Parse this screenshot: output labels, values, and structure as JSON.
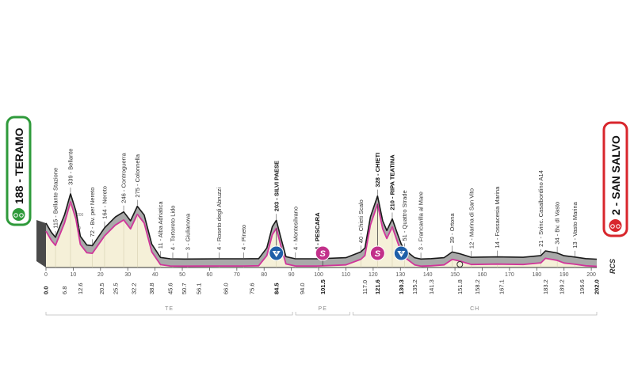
{
  "chart_data": {
    "type": "area",
    "start": {
      "name": "188 - TERAMO",
      "color": "#2e9a3a"
    },
    "finish": {
      "name": "2 - SAN SALVO",
      "color": "#d8262c"
    },
    "distance_km": 202.0,
    "ylim": [
      0,
      400
    ],
    "axis_ticks": [
      0,
      10,
      20,
      30,
      40,
      50,
      60,
      70,
      80,
      90,
      100,
      110,
      120,
      130,
      140,
      150,
      160,
      170,
      180,
      190,
      200
    ],
    "scale_label_200": "200",
    "scale_label_0": "0",
    "brand": "RCS",
    "km_markers": [
      {
        "label": "0.0",
        "km": 0.0,
        "bold": true
      },
      {
        "label": "6.8",
        "km": 6.8
      },
      {
        "label": "12.6",
        "km": 12.6
      },
      {
        "label": "20.5",
        "km": 20.5
      },
      {
        "label": "25.5",
        "km": 25.5
      },
      {
        "label": "32.2",
        "km": 32.2
      },
      {
        "label": "38.8",
        "km": 38.8
      },
      {
        "label": "45.6",
        "km": 45.6
      },
      {
        "label": "50.7",
        "km": 50.7
      },
      {
        "label": "56.1",
        "km": 56.1
      },
      {
        "label": "66.0",
        "km": 66.0
      },
      {
        "label": "75.6",
        "km": 75.6
      },
      {
        "label": "84.5",
        "km": 84.5,
        "bold": true
      },
      {
        "label": "94.0",
        "km": 94.0
      },
      {
        "label": "101.5",
        "km": 101.5,
        "bold": true
      },
      {
        "label": "117.0",
        "km": 117.0
      },
      {
        "label": "121.6",
        "km": 121.6,
        "bold": true
      },
      {
        "label": "130.3",
        "km": 130.3,
        "bold": true
      },
      {
        "label": "135.2",
        "km": 135.2
      },
      {
        "label": "141.3",
        "km": 141.3
      },
      {
        "label": "151.8",
        "km": 151.8
      },
      {
        "label": "158.2",
        "km": 158.2
      },
      {
        "label": "167.1",
        "km": 167.1
      },
      {
        "label": "183.2",
        "km": 183.2
      },
      {
        "label": "189.2",
        "km": 189.2
      },
      {
        "label": "196.6",
        "km": 196.6
      },
      {
        "label": "202.0",
        "km": 202.0,
        "bold": true
      }
    ],
    "waypoints": [
      {
        "label": "115 - Bellante Stazione",
        "km": 3.5
      },
      {
        "label": "339 - Bellante",
        "km": 9.0
      },
      {
        "label": "72 - Bv. per Nereto",
        "km": 17.0
      },
      {
        "label": "164 - Nereto",
        "km": 21.5
      },
      {
        "label": "246 - Controguerra",
        "km": 28.5
      },
      {
        "label": "275 - Colonnella",
        "km": 33.5
      },
      {
        "label": "11 - Alba Adriatica",
        "km": 42.0
      },
      {
        "label": "4 - Tortoreto Lido",
        "km": 46.5
      },
      {
        "label": "3 - Giulianova",
        "km": 52.0
      },
      {
        "label": "4 - Roseto degli Abruzzi",
        "km": 63.5
      },
      {
        "label": "4 - Pineto",
        "km": 72.5
      },
      {
        "label": "203 - SILVI PAESE",
        "km": 84.5,
        "bold": true
      },
      {
        "label": "4 - Montesilvano",
        "km": 91.5
      },
      {
        "label": "4 - PESCARA",
        "km": 99.5,
        "bold": true
      },
      {
        "label": "40 - Chieti Scalo",
        "km": 115.5
      },
      {
        "label": "328 - CHIETI",
        "km": 121.6,
        "bold": true
      },
      {
        "label": "210 - RIPA TEATINA",
        "km": 127.0,
        "bold": true
      },
      {
        "label": "51 - Quattro Strade",
        "km": 131.5
      },
      {
        "label": "3 - Francavilla al Mare",
        "km": 137.5
      },
      {
        "label": "39 - Ortona",
        "km": 149.0
      },
      {
        "label": "12 - Marina di San Vito",
        "km": 156.0
      },
      {
        "label": "14 - Fossacesia Marina",
        "km": 165.5
      },
      {
        "label": "21 - Svinc. Casalbordino A14",
        "km": 181.5
      },
      {
        "label": "34 - Bv. di Vasto",
        "km": 187.5
      },
      {
        "label": "13 - Vasto Marina",
        "km": 194.0
      }
    ],
    "markers": [
      {
        "type": "gpm",
        "label": "4",
        "km": 84.5,
        "color": "#1f5fa8"
      },
      {
        "type": "sprint",
        "label": "S",
        "km": 101.5,
        "color": "#c2308a"
      },
      {
        "type": "sprint",
        "label": "S",
        "km": 121.6,
        "color": "#c2308a"
      },
      {
        "type": "gpm",
        "label": "4",
        "km": 130.3,
        "color": "#1f5fa8"
      }
    ],
    "regions": [
      {
        "label": "TE",
        "from_km": 0,
        "to_km": 91
      },
      {
        "label": "PE",
        "from_km": 91,
        "to_km": 112
      },
      {
        "label": "CH",
        "from_km": 112,
        "to_km": 202
      }
    ],
    "profile": [
      {
        "km": 0,
        "alt": 188
      },
      {
        "km": 2,
        "alt": 140
      },
      {
        "km": 3.5,
        "alt": 115
      },
      {
        "km": 6.8,
        "alt": 230
      },
      {
        "km": 9.0,
        "alt": 339
      },
      {
        "km": 11,
        "alt": 250
      },
      {
        "km": 12.6,
        "alt": 120
      },
      {
        "km": 15,
        "alt": 75
      },
      {
        "km": 17,
        "alt": 72
      },
      {
        "km": 21.5,
        "alt": 164
      },
      {
        "km": 25.5,
        "alt": 220
      },
      {
        "km": 28.5,
        "alt": 246
      },
      {
        "km": 31,
        "alt": 200
      },
      {
        "km": 33.5,
        "alt": 275
      },
      {
        "km": 36,
        "alt": 230
      },
      {
        "km": 38.8,
        "alt": 80
      },
      {
        "km": 42,
        "alt": 11
      },
      {
        "km": 45.6,
        "alt": 4
      },
      {
        "km": 50.7,
        "alt": 3
      },
      {
        "km": 63.5,
        "alt": 4
      },
      {
        "km": 72.5,
        "alt": 4
      },
      {
        "km": 78,
        "alt": 5
      },
      {
        "km": 81,
        "alt": 60
      },
      {
        "km": 83,
        "alt": 170
      },
      {
        "km": 84.5,
        "alt": 203
      },
      {
        "km": 86,
        "alt": 120
      },
      {
        "km": 88,
        "alt": 15
      },
      {
        "km": 91.5,
        "alt": 4
      },
      {
        "km": 99.5,
        "alt": 4
      },
      {
        "km": 110,
        "alt": 10
      },
      {
        "km": 115.5,
        "alt": 40
      },
      {
        "km": 117,
        "alt": 60
      },
      {
        "km": 119,
        "alt": 220
      },
      {
        "km": 121.6,
        "alt": 328
      },
      {
        "km": 123.5,
        "alt": 200
      },
      {
        "km": 125,
        "alt": 150
      },
      {
        "km": 127,
        "alt": 210
      },
      {
        "km": 129,
        "alt": 130
      },
      {
        "km": 130.3,
        "alt": 80
      },
      {
        "km": 131.5,
        "alt": 51
      },
      {
        "km": 135.2,
        "alt": 10
      },
      {
        "km": 137.5,
        "alt": 3
      },
      {
        "km": 141.3,
        "alt": 5
      },
      {
        "km": 146,
        "alt": 10
      },
      {
        "km": 149,
        "alt": 39
      },
      {
        "km": 151.8,
        "alt": 30
      },
      {
        "km": 156,
        "alt": 12
      },
      {
        "km": 165.5,
        "alt": 14
      },
      {
        "km": 175,
        "alt": 12
      },
      {
        "km": 181.5,
        "alt": 21
      },
      {
        "km": 183.2,
        "alt": 45
      },
      {
        "km": 187.5,
        "alt": 34
      },
      {
        "km": 190,
        "alt": 20
      },
      {
        "km": 194,
        "alt": 13
      },
      {
        "km": 198,
        "alt": 5
      },
      {
        "km": 202,
        "alt": 2
      }
    ]
  }
}
